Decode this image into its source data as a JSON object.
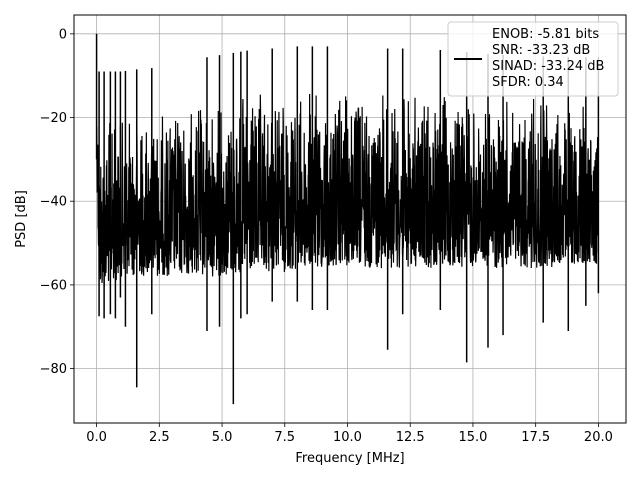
{
  "chart_data": {
    "type": "line",
    "title": "",
    "xlabel": "Frequency [MHz]",
    "ylabel": "PSD [dB]",
    "xlim": [
      -0.9,
      21.1
    ],
    "ylim": [
      -93,
      4.5
    ],
    "xticks": [
      0.0,
      2.5,
      5.0,
      7.5,
      10.0,
      12.5,
      15.0,
      17.5,
      20.0
    ],
    "xtick_labels": [
      "0.0",
      "2.5",
      "5.0",
      "7.5",
      "10.0",
      "12.5",
      "15.0",
      "17.5",
      "20.0"
    ],
    "yticks": [
      0,
      -20,
      -40,
      -60,
      -80
    ],
    "ytick_labels": [
      "0",
      "−20",
      "−40",
      "−60",
      "−80"
    ],
    "grid": true,
    "legend_position": "top-right",
    "series": [
      {
        "color": "#000000",
        "frequency_range_mhz": [
          0.0,
          20.0
        ],
        "peak": {
          "x": 0.0,
          "y": 0.0
        },
        "upper_envelope": [
          [
            0.0,
            -10
          ],
          [
            0.1,
            -19
          ],
          [
            0.5,
            -19
          ],
          [
            1.0,
            -19
          ],
          [
            1.6,
            -18.5
          ],
          [
            1.65,
            -15.5
          ],
          [
            1.7,
            -18.5
          ],
          [
            2.5,
            -18
          ],
          [
            3.0,
            -17
          ],
          [
            3.5,
            -17
          ],
          [
            4.0,
            -16
          ],
          [
            5.0,
            -15
          ],
          [
            6.0,
            -14
          ],
          [
            7.0,
            -13.5
          ],
          [
            8.0,
            -13
          ],
          [
            9.0,
            -13
          ],
          [
            10.0,
            -13
          ],
          [
            11.0,
            -13.5
          ],
          [
            12.0,
            -13.5
          ],
          [
            13.0,
            -13.5
          ],
          [
            14.0,
            -14
          ],
          [
            15.0,
            -14.5
          ],
          [
            16.0,
            -15
          ],
          [
            17.0,
            -15
          ],
          [
            18.0,
            -15.5
          ],
          [
            19.0,
            -15.5
          ],
          [
            20.0,
            -15.5
          ]
        ],
        "lower_envelope": [
          [
            0.0,
            -30
          ],
          [
            0.1,
            -62
          ],
          [
            1.0,
            -58
          ],
          [
            2.5,
            -58
          ],
          [
            5.0,
            -58
          ],
          [
            7.5,
            -57
          ],
          [
            10.0,
            -56
          ],
          [
            12.5,
            -56
          ],
          [
            15.0,
            -56
          ],
          [
            17.5,
            -56
          ],
          [
            20.0,
            -55
          ]
        ],
        "deep_dips": [
          [
            0.1,
            -67.5
          ],
          [
            0.3,
            -68
          ],
          [
            0.55,
            -67
          ],
          [
            0.75,
            -68
          ],
          [
            0.95,
            -63
          ],
          [
            1.15,
            -70
          ],
          [
            1.6,
            -84.5
          ],
          [
            2.2,
            -67
          ],
          [
            4.4,
            -71
          ],
          [
            4.9,
            -70
          ],
          [
            5.45,
            -88.5
          ],
          [
            5.75,
            -68
          ],
          [
            6.0,
            -67
          ],
          [
            7.0,
            -64
          ],
          [
            8.0,
            -64
          ],
          [
            8.6,
            -66
          ],
          [
            9.2,
            -66
          ],
          [
            11.6,
            -75.5
          ],
          [
            12.2,
            -67
          ],
          [
            13.7,
            -66
          ],
          [
            14.75,
            -78.5
          ],
          [
            15.6,
            -75
          ],
          [
            16.2,
            -72
          ],
          [
            17.8,
            -69
          ],
          [
            18.8,
            -71
          ],
          [
            19.5,
            -65
          ],
          [
            20.0,
            -62
          ]
        ]
      }
    ],
    "legend": [
      "ENOB: -5.81 bits",
      "SNR: -33.23 dB",
      "SINAD: -33.24 dB",
      "SFDR: 0.34"
    ]
  }
}
